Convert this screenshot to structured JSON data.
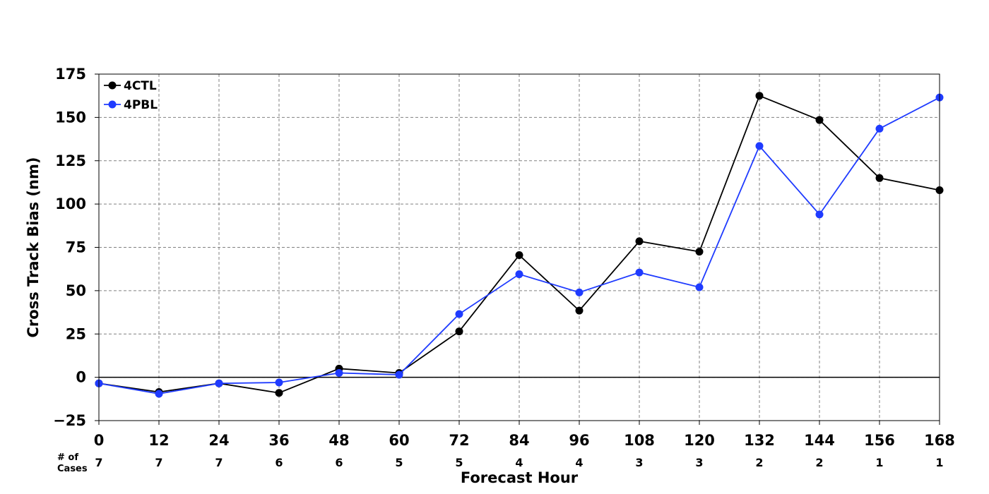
{
  "chart_data": {
    "type": "line",
    "xlabel": "Forecast Hour",
    "ylabel": "Cross Track Bias (nm)",
    "x": [
      0,
      12,
      24,
      36,
      48,
      60,
      72,
      84,
      96,
      108,
      120,
      132,
      144,
      156,
      168
    ],
    "x_ticks": [
      "0",
      "12",
      "24",
      "36",
      "48",
      "60",
      "72",
      "84",
      "96",
      "108",
      "120",
      "132",
      "144",
      "156",
      "168"
    ],
    "y_ticks": [
      "175",
      "150",
      "125",
      "100",
      "75",
      "50",
      "25",
      "0",
      "−25"
    ],
    "xlim": [
      0,
      168
    ],
    "ylim": [
      -25,
      175
    ],
    "grid": true,
    "legend_position": "top-left",
    "series": [
      {
        "name": "4CTL",
        "color": "#000000",
        "values": [
          -3.5,
          -8.5,
          -3.5,
          -9,
          5,
          2.5,
          26.5,
          70.5,
          38.5,
          78.5,
          72.5,
          162.5,
          148.5,
          115,
          108
        ]
      },
      {
        "name": "4PBL",
        "color": "#1f3bff",
        "values": [
          -3.5,
          -9.5,
          -3.5,
          -3,
          2.5,
          1.5,
          36.5,
          59.5,
          49,
          60.5,
          52,
          133.5,
          94,
          143.5,
          161.5
        ]
      }
    ],
    "cases_label_line1": "# of",
    "cases_label_line2": "Cases",
    "cases": [
      "7",
      "7",
      "7",
      "6",
      "6",
      "5",
      "5",
      "4",
      "4",
      "3",
      "3",
      "2",
      "2",
      "1",
      "1"
    ]
  }
}
